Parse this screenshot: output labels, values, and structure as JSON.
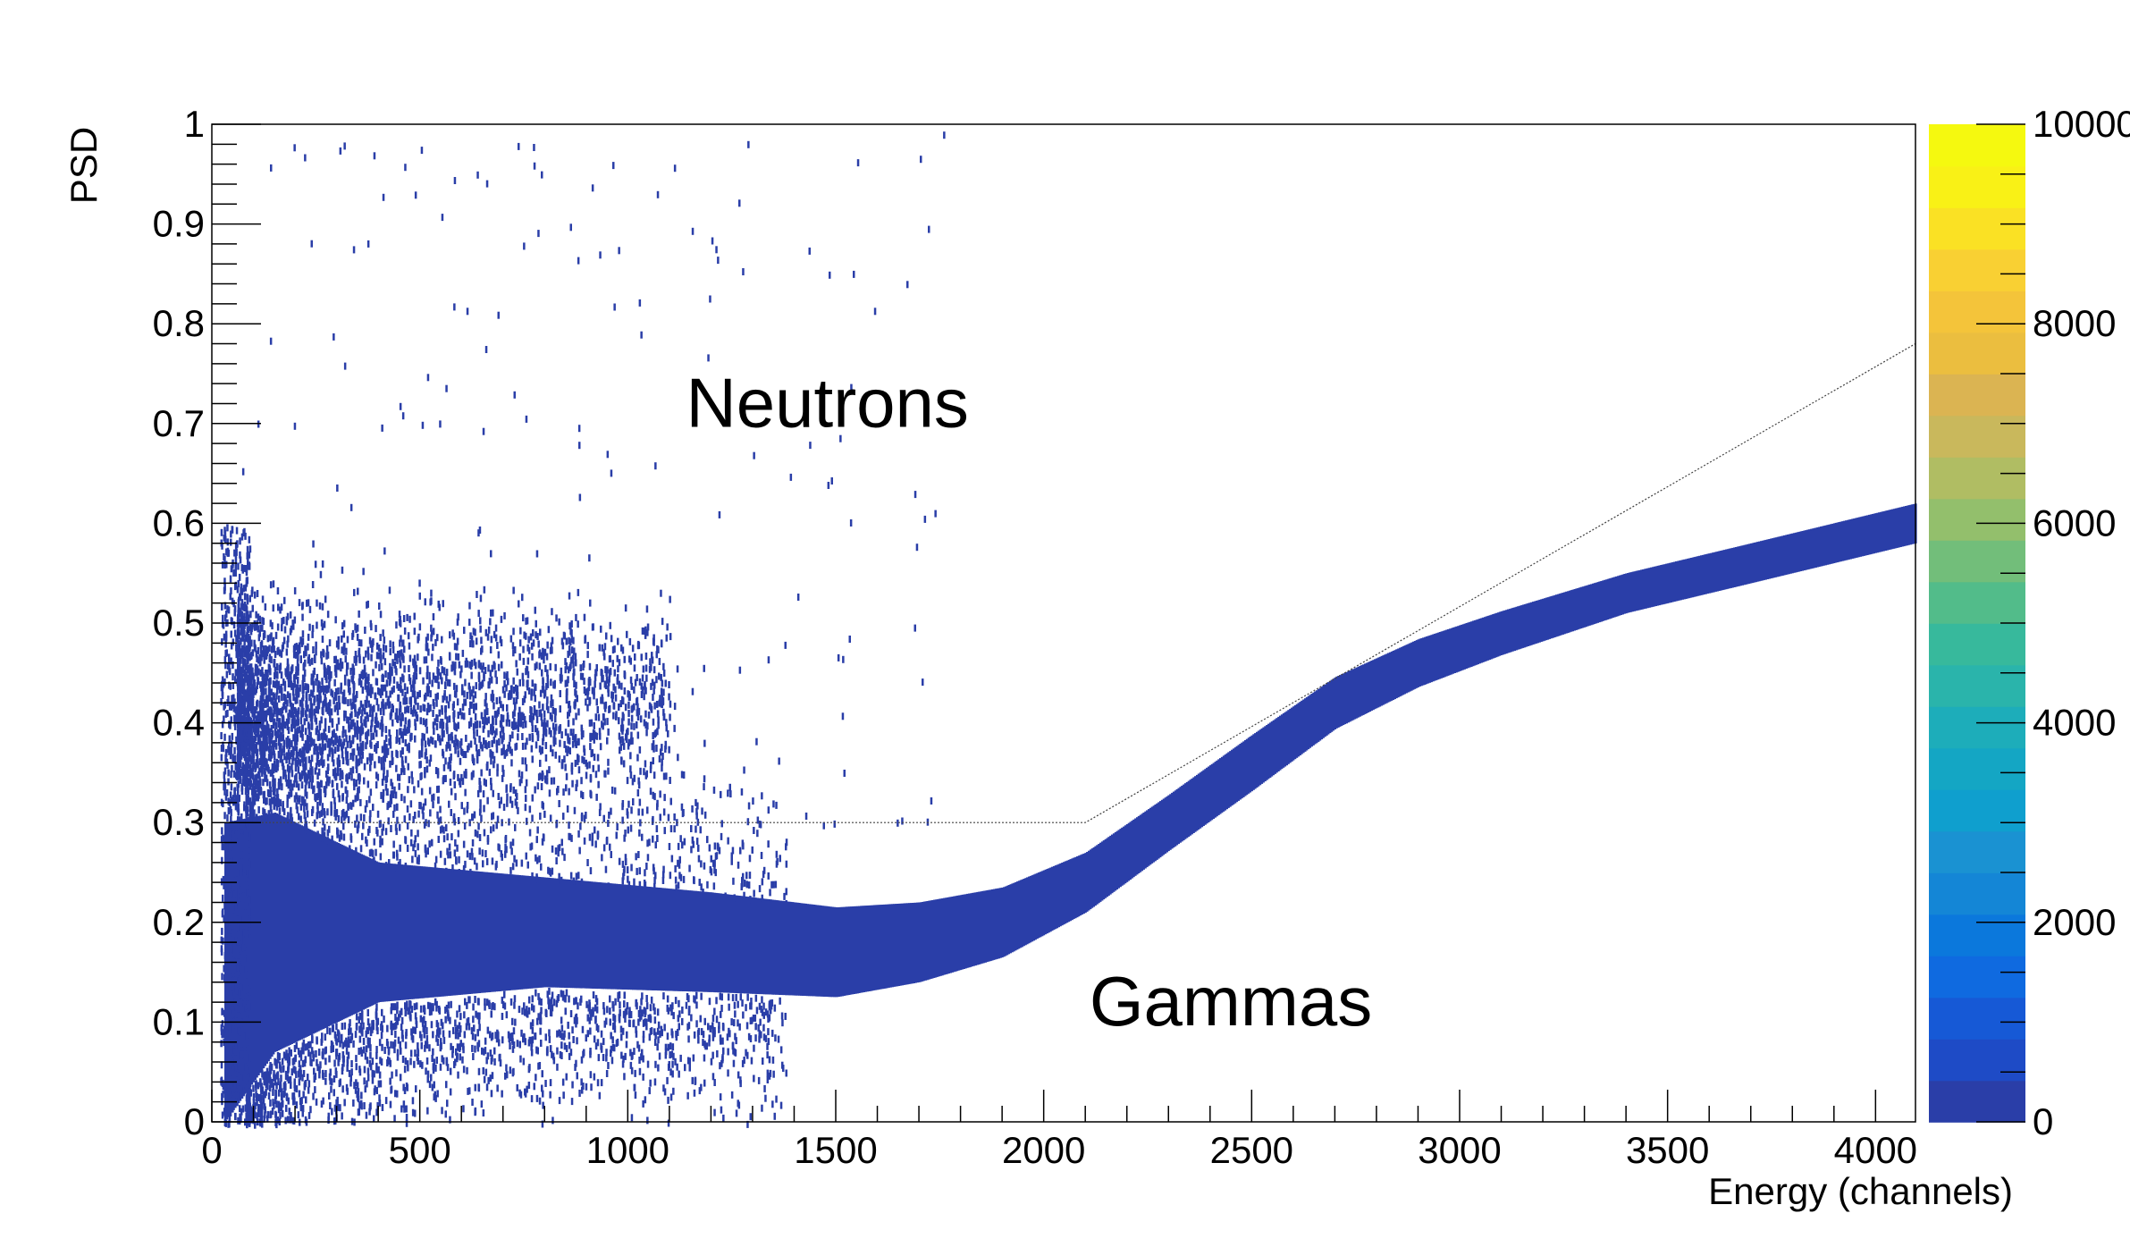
{
  "chart_data": {
    "type": "heatmap",
    "title": "",
    "xlabel": "Energy (channels)",
    "ylabel": "PSD",
    "xlim": [
      0,
      4096
    ],
    "ylim": [
      0,
      1
    ],
    "xticks": [
      0,
      500,
      1000,
      1500,
      2000,
      2500,
      3000,
      3500,
      4000
    ],
    "xtick_labels": [
      "0",
      "500",
      "1000",
      "1500",
      "2000",
      "2500",
      "3000",
      "3500",
      "4000"
    ],
    "yticks": [
      0,
      0.1,
      0.2,
      0.3,
      0.4,
      0.5,
      0.6,
      0.7,
      0.8,
      0.9,
      1
    ],
    "ytick_labels": [
      "0",
      "0.1",
      "0.2",
      "0.3",
      "0.4",
      "0.5",
      "0.6",
      "0.7",
      "0.8",
      "0.9",
      "1"
    ],
    "annotations": [
      {
        "text": "Neutrons",
        "x": 1480,
        "y": 0.72
      },
      {
        "text": "Gammas",
        "x": 2450,
        "y": 0.12
      }
    ],
    "cut_line": [
      [
        0,
        0.3
      ],
      [
        2100,
        0.3
      ],
      [
        4096,
        0.78
      ]
    ],
    "gamma_band": {
      "energy": [
        30,
        150,
        400,
        800,
        1200,
        1500,
        1700,
        1900,
        2100,
        2300,
        2500,
        2700,
        2900,
        3100,
        3400,
        3700,
        4096
      ],
      "psd_center": [
        0.15,
        0.19,
        0.19,
        0.19,
        0.18,
        0.17,
        0.18,
        0.2,
        0.24,
        0.3,
        0.36,
        0.42,
        0.46,
        0.49,
        0.53,
        0.56,
        0.6
      ],
      "psd_halfwidth": [
        0.15,
        0.12,
        0.07,
        0.055,
        0.05,
        0.045,
        0.04,
        0.035,
        0.03,
        0.028,
        0.028,
        0.026,
        0.024,
        0.022,
        0.02,
        0.02,
        0.02
      ]
    },
    "neutron_cloud": {
      "energy_range": [
        60,
        1100
      ],
      "psd_range": [
        0.3,
        0.55
      ],
      "psd_peak": 0.42
    },
    "colorbar": {
      "range": [
        0,
        10000
      ],
      "tick_labels": [
        "0",
        "2000",
        "4000",
        "6000",
        "8000",
        "10000"
      ],
      "tick_values": [
        0,
        2000,
        4000,
        6000,
        8000,
        10000
      ],
      "colors": [
        "#2a3ea8",
        "#1e4bc6",
        "#1659d6",
        "#0f6ae0",
        "#0b78dc",
        "#1486d6",
        "#1a92d2",
        "#0f9fce",
        "#14a6c4",
        "#1dadba",
        "#2ab4ab",
        "#37b99c",
        "#52bc8a",
        "#72be7a",
        "#93bf6c",
        "#b0bd63",
        "#c9b85c",
        "#dbb452",
        "#ebbe3f",
        "#f4c43a",
        "#f9d033",
        "#fae124",
        "#f9f116",
        "#f5f90f"
      ]
    },
    "point_color": "#2a3ea8"
  }
}
